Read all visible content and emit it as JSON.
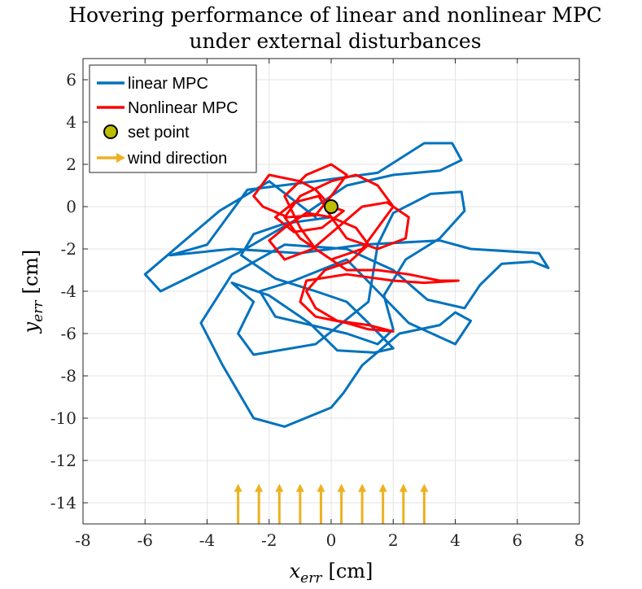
{
  "chart_data": {
    "type": "line",
    "title_lines": [
      "Hovering performance of linear and nonlinear MPC",
      "under external disturbances"
    ],
    "xlabel": {
      "var": "x",
      "sub": "err",
      "unit": "[cm]"
    },
    "ylabel": {
      "var": "y",
      "sub": "err",
      "unit": "[cm]"
    },
    "xlim": [
      -8,
      8
    ],
    "ylim": [
      -15,
      7
    ],
    "x_ticks": [
      -8,
      -6,
      -4,
      -2,
      0,
      2,
      4,
      6,
      8
    ],
    "y_ticks": [
      6,
      4,
      2,
      0,
      -2,
      -4,
      -6,
      -8,
      -10,
      -12,
      -14
    ],
    "grid": true,
    "legend_position": "top-left",
    "legend": [
      {
        "label": "linear MPC",
        "symbol": "line",
        "color": "#0072BD"
      },
      {
        "label": "Nonlinear MPC",
        "symbol": "line",
        "color": "#FF0000"
      },
      {
        "label": "set point",
        "symbol": "marker",
        "color": "#BDBD00"
      },
      {
        "label": "wind direction",
        "symbol": "arrow",
        "color": "#EDB120"
      }
    ],
    "series": [
      {
        "name": "linear MPC",
        "color": "#0072BD",
        "points": [
          [
            -0.5,
            -0.5
          ],
          [
            -2,
            1.2
          ],
          [
            -3.6,
            -0.2
          ],
          [
            -6,
            -3.2
          ],
          [
            -5.5,
            -4
          ],
          [
            -3,
            -2.2
          ],
          [
            -1,
            -0.5
          ],
          [
            0.5,
            1
          ],
          [
            2,
            1.5
          ],
          [
            3.5,
            1.7
          ],
          [
            4.2,
            2.2
          ],
          [
            3.9,
            3
          ],
          [
            3,
            3
          ],
          [
            1.5,
            1.6
          ],
          [
            -0.5,
            1.2
          ],
          [
            -2.7,
            0.8
          ],
          [
            -4,
            -1.8
          ],
          [
            -5.2,
            -2.3
          ],
          [
            -3.2,
            -2
          ],
          [
            -1,
            -2.2
          ],
          [
            1,
            -1.8
          ],
          [
            3.5,
            -1.6
          ],
          [
            4.5,
            -2
          ],
          [
            6.7,
            -2.2
          ],
          [
            7,
            -2.9
          ],
          [
            6.5,
            -2.6
          ],
          [
            5.5,
            -2.7
          ],
          [
            4.8,
            -3.7
          ],
          [
            4.3,
            -4.8
          ],
          [
            3.1,
            -4.4
          ],
          [
            2,
            -3
          ],
          [
            0.5,
            -2
          ],
          [
            -1.5,
            -1.8
          ],
          [
            -3.2,
            -3.2
          ],
          [
            -4.2,
            -5.5
          ],
          [
            -3.5,
            -7.5
          ],
          [
            -2.5,
            -10
          ],
          [
            -1.5,
            -10.4
          ],
          [
            0,
            -9.5
          ],
          [
            0.4,
            -8.8
          ],
          [
            1,
            -7.5
          ],
          [
            2.2,
            -6
          ],
          [
            3.5,
            -5.6
          ],
          [
            4,
            -5
          ],
          [
            4.5,
            -5.4
          ],
          [
            4,
            -6.5
          ],
          [
            2.5,
            -5.5
          ],
          [
            1.5,
            -4
          ],
          [
            0.5,
            -2.5
          ],
          [
            -1.2,
            -3.5
          ],
          [
            -2.3,
            -4
          ],
          [
            -1.8,
            -5.2
          ],
          [
            0.5,
            -6
          ],
          [
            1.5,
            -6.5
          ],
          [
            2,
            -5.8
          ],
          [
            1.7,
            -4.2
          ],
          [
            2.4,
            -2.5
          ],
          [
            3.5,
            -1.5
          ],
          [
            4.3,
            -0.2
          ],
          [
            4.2,
            0.7
          ],
          [
            3.2,
            0.6
          ],
          [
            2,
            -0.3
          ],
          [
            1.5,
            -1.8
          ],
          [
            1.2,
            -4.5
          ],
          [
            -0.5,
            -6.5
          ],
          [
            -2.5,
            -7
          ],
          [
            -3,
            -6
          ],
          [
            -2.5,
            -4.5
          ],
          [
            -3.2,
            -3.6
          ],
          [
            -2,
            -4.2
          ],
          [
            -0.7,
            -5.5
          ],
          [
            0.2,
            -6.8
          ],
          [
            1.4,
            -6.9
          ],
          [
            2,
            -6.7
          ],
          [
            1.2,
            -5.5
          ],
          [
            0.5,
            -4.5
          ],
          [
            -0.5,
            -4
          ],
          [
            -1.8,
            -3.4
          ],
          [
            -2.9,
            -2.3
          ],
          [
            -2.5,
            -1.3
          ],
          [
            -1.5,
            -0.8
          ],
          [
            0,
            -0.5
          ]
        ]
      },
      {
        "name": "Nonlinear MPC",
        "color": "#FF0000",
        "points": [
          [
            0,
            0
          ],
          [
            -0.5,
            0.8
          ],
          [
            -1,
            1.2
          ],
          [
            -2,
            1.5
          ],
          [
            -2.5,
            0.5
          ],
          [
            -2.2,
            0
          ],
          [
            -1.4,
            -0.5
          ],
          [
            -0.5,
            -0.4
          ],
          [
            0,
            0.5
          ],
          [
            0.5,
            1.5
          ],
          [
            0,
            2
          ],
          [
            -0.8,
            1.5
          ],
          [
            -1.5,
            0.5
          ],
          [
            -1,
            -1
          ],
          [
            -0.5,
            -2
          ],
          [
            0,
            -2.5
          ],
          [
            1,
            -2
          ],
          [
            1.5,
            -1
          ],
          [
            2,
            0
          ],
          [
            1.5,
            1
          ],
          [
            0.8,
            1.5
          ],
          [
            0,
            1.2
          ],
          [
            -1,
            0.5
          ],
          [
            -1.5,
            -0.5
          ],
          [
            -1,
            -1.5
          ],
          [
            -0.5,
            -2
          ],
          [
            0.5,
            -3
          ],
          [
            1.5,
            -3
          ],
          [
            2.5,
            -3.2
          ],
          [
            3.5,
            -3.5
          ],
          [
            4.1,
            -3.5
          ],
          [
            3,
            -3.6
          ],
          [
            2,
            -3.5
          ],
          [
            0.5,
            -3.2
          ],
          [
            -0.8,
            -3.5
          ],
          [
            -1,
            -4.5
          ],
          [
            -0.5,
            -5.2
          ],
          [
            0.5,
            -5.5
          ],
          [
            1.2,
            -5.8
          ],
          [
            2,
            -5.9
          ],
          [
            1.2,
            -5.6
          ],
          [
            0.2,
            -5.4
          ],
          [
            -0.5,
            -4.8
          ],
          [
            -0.8,
            -4
          ],
          [
            -0.2,
            -3
          ],
          [
            0.6,
            -2.6
          ],
          [
            1.2,
            -1.8
          ],
          [
            0.8,
            -1
          ],
          [
            0,
            -0.5
          ],
          [
            -0.8,
            -0.3
          ],
          [
            -1.5,
            -1
          ],
          [
            -2,
            -1.6
          ],
          [
            -1.5,
            -2.5
          ],
          [
            -0.6,
            -2
          ],
          [
            0.2,
            -1
          ],
          [
            1,
            0
          ],
          [
            1.8,
            0.2
          ],
          [
            2.5,
            -0.5
          ],
          [
            2.4,
            -1.5
          ],
          [
            1.5,
            -2
          ],
          [
            0.5,
            -1.5
          ],
          [
            0,
            -0.5
          ],
          [
            -0.4,
            0.5
          ],
          [
            -1.2,
            0.2
          ],
          [
            -1.8,
            -0.5
          ],
          [
            -1.2,
            -1.2
          ],
          [
            -0.3,
            -1
          ],
          [
            0.4,
            -0.2
          ],
          [
            0,
            0
          ]
        ]
      }
    ],
    "set_point": {
      "x": 0,
      "y": 0,
      "color": "#BDBD00"
    },
    "wind_arrows": {
      "color": "#EDB120",
      "x": [
        -3,
        -2.33,
        -1.67,
        -1,
        -0.33,
        0.33,
        1,
        1.67,
        2.33,
        3
      ],
      "y_from": -15,
      "y_to": -13.1
    }
  }
}
